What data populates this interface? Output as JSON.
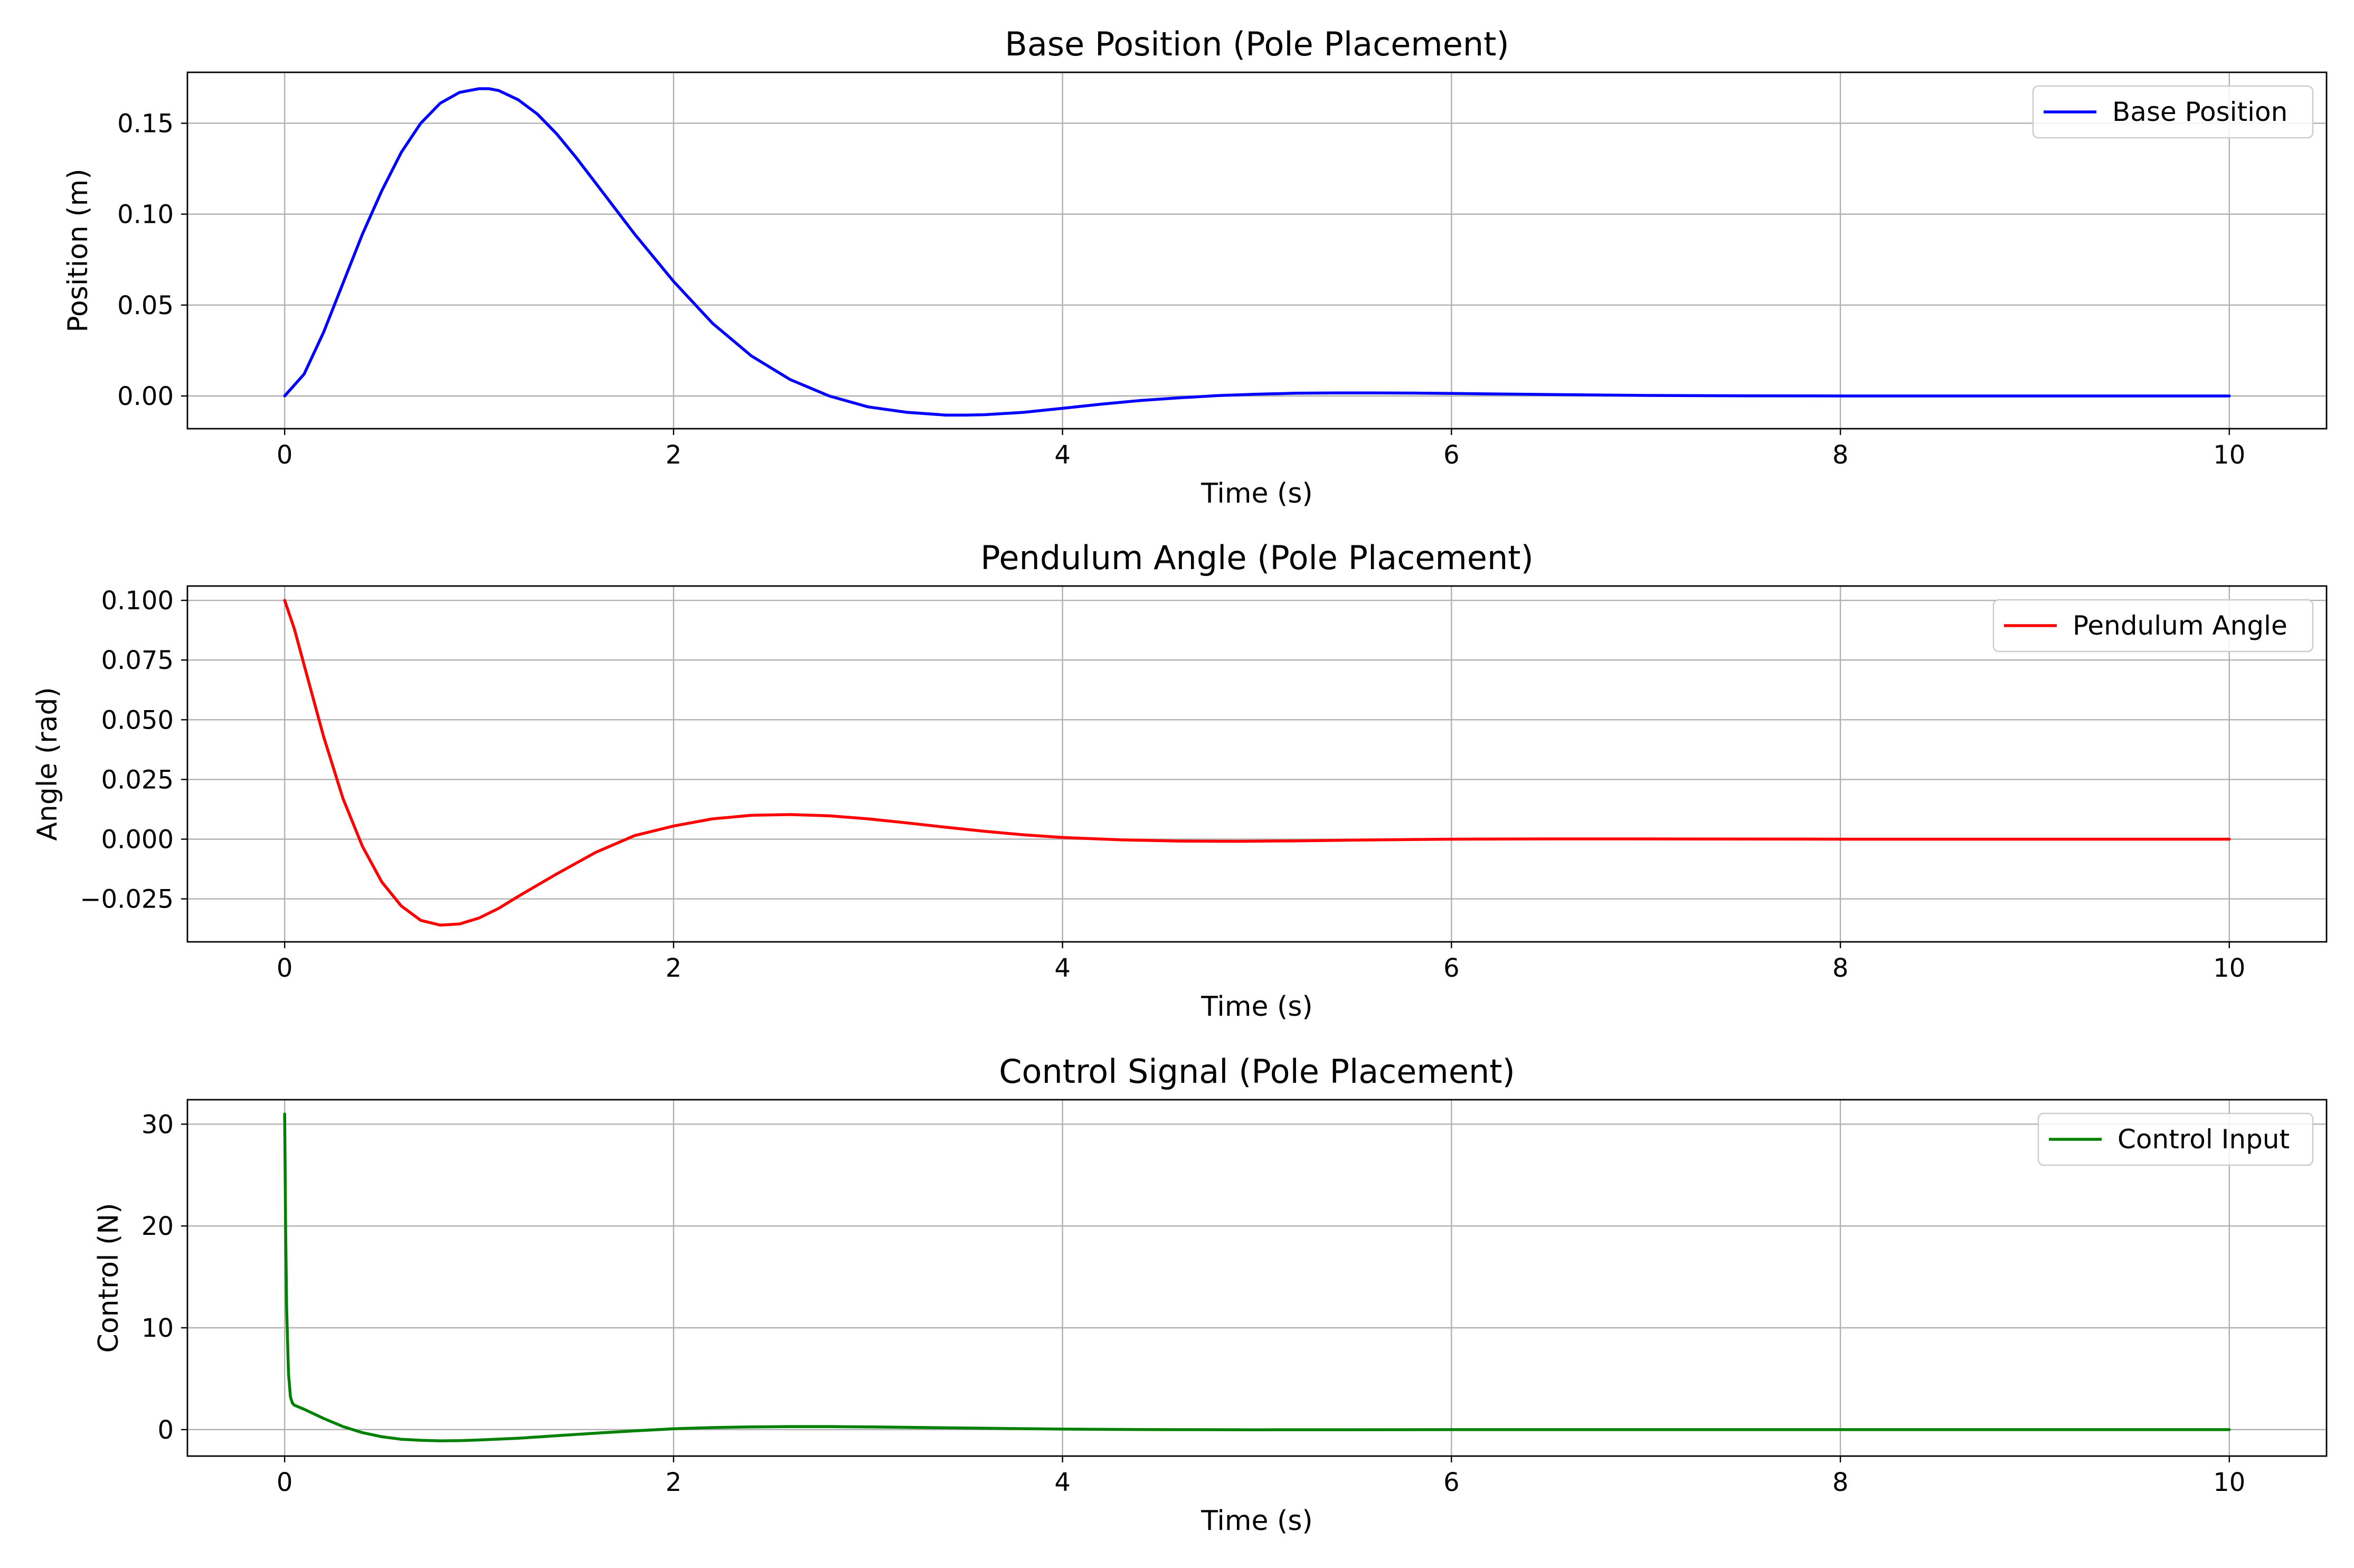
{
  "chart_data": [
    {
      "type": "line",
      "title": "Base Position (Pole Placement)",
      "xlabel": "Time (s)",
      "ylabel": "Position (m)",
      "xlim": [
        -0.5,
        10.5
      ],
      "ylim": [
        -0.018,
        0.178
      ],
      "xticks": [
        0,
        2,
        4,
        6,
        8,
        10
      ],
      "yticks": [
        0.0,
        0.05,
        0.1,
        0.15
      ],
      "ytick_labels": [
        "0.00",
        "0.05",
        "0.10",
        "0.15"
      ],
      "xtick_labels": [
        "0",
        "2",
        "4",
        "6",
        "8",
        "10"
      ],
      "grid": true,
      "legend_position": "top-right",
      "series": [
        {
          "name": "Base Position",
          "color": "#0000ff",
          "x": [
            0,
            0.1,
            0.2,
            0.3,
            0.4,
            0.5,
            0.6,
            0.7,
            0.8,
            0.9,
            1.0,
            1.05,
            1.1,
            1.2,
            1.3,
            1.4,
            1.5,
            1.6,
            1.7,
            1.8,
            1.9,
            2.0,
            2.2,
            2.4,
            2.6,
            2.8,
            3.0,
            3.2,
            3.4,
            3.5,
            3.6,
            3.8,
            4.0,
            4.2,
            4.4,
            4.6,
            4.8,
            5.0,
            5.2,
            5.4,
            5.6,
            5.8,
            6.0,
            6.5,
            7.0,
            7.5,
            8.0,
            8.5,
            9.0,
            9.5,
            10.0
          ],
          "y": [
            0.0,
            0.012,
            0.035,
            0.062,
            0.089,
            0.113,
            0.134,
            0.15,
            0.161,
            0.167,
            0.169,
            0.169,
            0.168,
            0.163,
            0.155,
            0.144,
            0.131,
            0.117,
            0.103,
            0.089,
            0.076,
            0.063,
            0.04,
            0.022,
            0.009,
            0.0,
            -0.006,
            -0.009,
            -0.0105,
            -0.0105,
            -0.0103,
            -0.009,
            -0.0068,
            -0.0045,
            -0.0025,
            -0.001,
            0.0002,
            0.001,
            0.0015,
            0.0017,
            0.0017,
            0.0016,
            0.0014,
            0.0008,
            0.0003,
            0.0001,
            0.0,
            0.0,
            0.0,
            0.0,
            0.0
          ]
        }
      ]
    },
    {
      "type": "line",
      "title": "Pendulum Angle (Pole Placement)",
      "xlabel": "Time (s)",
      "ylabel": "Angle (rad)",
      "xlim": [
        -0.5,
        10.5
      ],
      "ylim": [
        -0.043,
        0.106
      ],
      "xticks": [
        0,
        2,
        4,
        6,
        8,
        10
      ],
      "yticks": [
        -0.025,
        0.0,
        0.025,
        0.05,
        0.075,
        0.1
      ],
      "ytick_labels": [
        "−0.025",
        "0.000",
        "0.025",
        "0.050",
        "0.075",
        "0.100"
      ],
      "xtick_labels": [
        "0",
        "2",
        "4",
        "6",
        "8",
        "10"
      ],
      "grid": true,
      "legend_position": "top-right",
      "series": [
        {
          "name": "Pendulum Angle",
          "color": "#ff0000",
          "x": [
            0,
            0.05,
            0.1,
            0.15,
            0.2,
            0.3,
            0.4,
            0.5,
            0.6,
            0.7,
            0.8,
            0.9,
            1.0,
            1.1,
            1.2,
            1.4,
            1.6,
            1.8,
            2.0,
            2.2,
            2.4,
            2.6,
            2.8,
            3.0,
            3.2,
            3.4,
            3.6,
            3.8,
            4.0,
            4.3,
            4.6,
            4.9,
            5.2,
            5.5,
            6.0,
            6.5,
            7.0,
            8.0,
            9.0,
            10.0
          ],
          "y": [
            0.1,
            0.088,
            0.073,
            0.058,
            0.043,
            0.017,
            -0.003,
            -0.018,
            -0.028,
            -0.034,
            -0.036,
            -0.0355,
            -0.033,
            -0.029,
            -0.024,
            -0.0145,
            -0.0055,
            0.0015,
            0.0055,
            0.0085,
            0.01,
            0.0103,
            0.0098,
            0.0085,
            0.0068,
            0.005,
            0.0033,
            0.0018,
            0.0007,
            -0.0003,
            -0.0008,
            -0.0009,
            -0.0007,
            -0.0004,
            0.0,
            0.0001,
            0.0001,
            0.0,
            0.0,
            0.0
          ]
        }
      ]
    },
    {
      "type": "line",
      "title": "Control Signal (Pole Placement)",
      "xlabel": "Time (s)",
      "ylabel": "Control (N)",
      "xlim": [
        -0.5,
        10.5
      ],
      "ylim": [
        -2.6,
        32.4
      ],
      "xticks": [
        0,
        2,
        4,
        6,
        8,
        10
      ],
      "yticks": [
        0,
        10,
        20,
        30
      ],
      "ytick_labels": [
        "0",
        "10",
        "20",
        "30"
      ],
      "xtick_labels": [
        "0",
        "2",
        "4",
        "6",
        "8",
        "10"
      ],
      "grid": true,
      "legend_position": "top-right",
      "series": [
        {
          "name": "Control Input",
          "color": "#008000",
          "x": [
            0,
            0.005,
            0.01,
            0.02,
            0.03,
            0.04,
            0.05,
            0.1,
            0.2,
            0.3,
            0.4,
            0.5,
            0.6,
            0.7,
            0.8,
            0.9,
            1.0,
            1.2,
            1.4,
            1.6,
            1.8,
            2.0,
            2.2,
            2.4,
            2.6,
            2.8,
            3.0,
            3.3,
            3.6,
            4.0,
            4.5,
            5.0,
            6.0,
            7.0,
            8.0,
            9.0,
            10.0
          ],
          "y": [
            31.0,
            20.0,
            12.0,
            5.5,
            3.2,
            2.6,
            2.4,
            2.0,
            1.1,
            0.3,
            -0.3,
            -0.7,
            -0.95,
            -1.05,
            -1.1,
            -1.08,
            -1.02,
            -0.85,
            -0.6,
            -0.35,
            -0.12,
            0.08,
            0.2,
            0.27,
            0.3,
            0.3,
            0.27,
            0.2,
            0.13,
            0.05,
            0.0,
            -0.02,
            0.0,
            0.0,
            0.0,
            0.0,
            0.0
          ]
        }
      ]
    }
  ]
}
